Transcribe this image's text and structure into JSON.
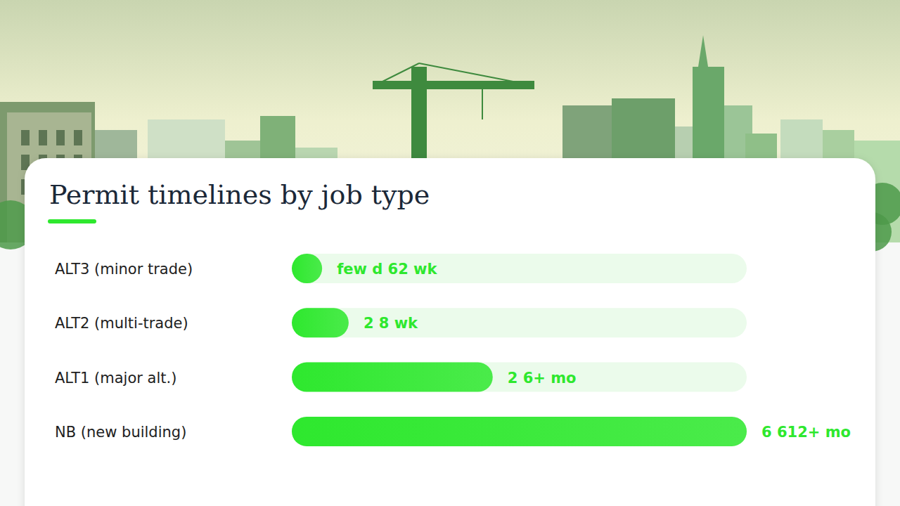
{
  "chart_data": {
    "type": "bar",
    "title": "Permit timelines by job type",
    "orientation": "horizontal",
    "categories": [
      "ALT3 (minor trade)",
      "ALT2 (multi-trade)",
      "ALT1 (major alt.)",
      "NB (new building)"
    ],
    "values": [
      0.8,
      1.5,
      5.3,
      12
    ],
    "value_labels": [
      "few d 62 wk",
      "2 8 wk",
      "2 6+ mo",
      "6 612+ mo"
    ],
    "xlim": [
      0,
      12
    ],
    "color": "#2ee82e",
    "data_labels": true,
    "tick_labels": false,
    "grid": false
  }
}
